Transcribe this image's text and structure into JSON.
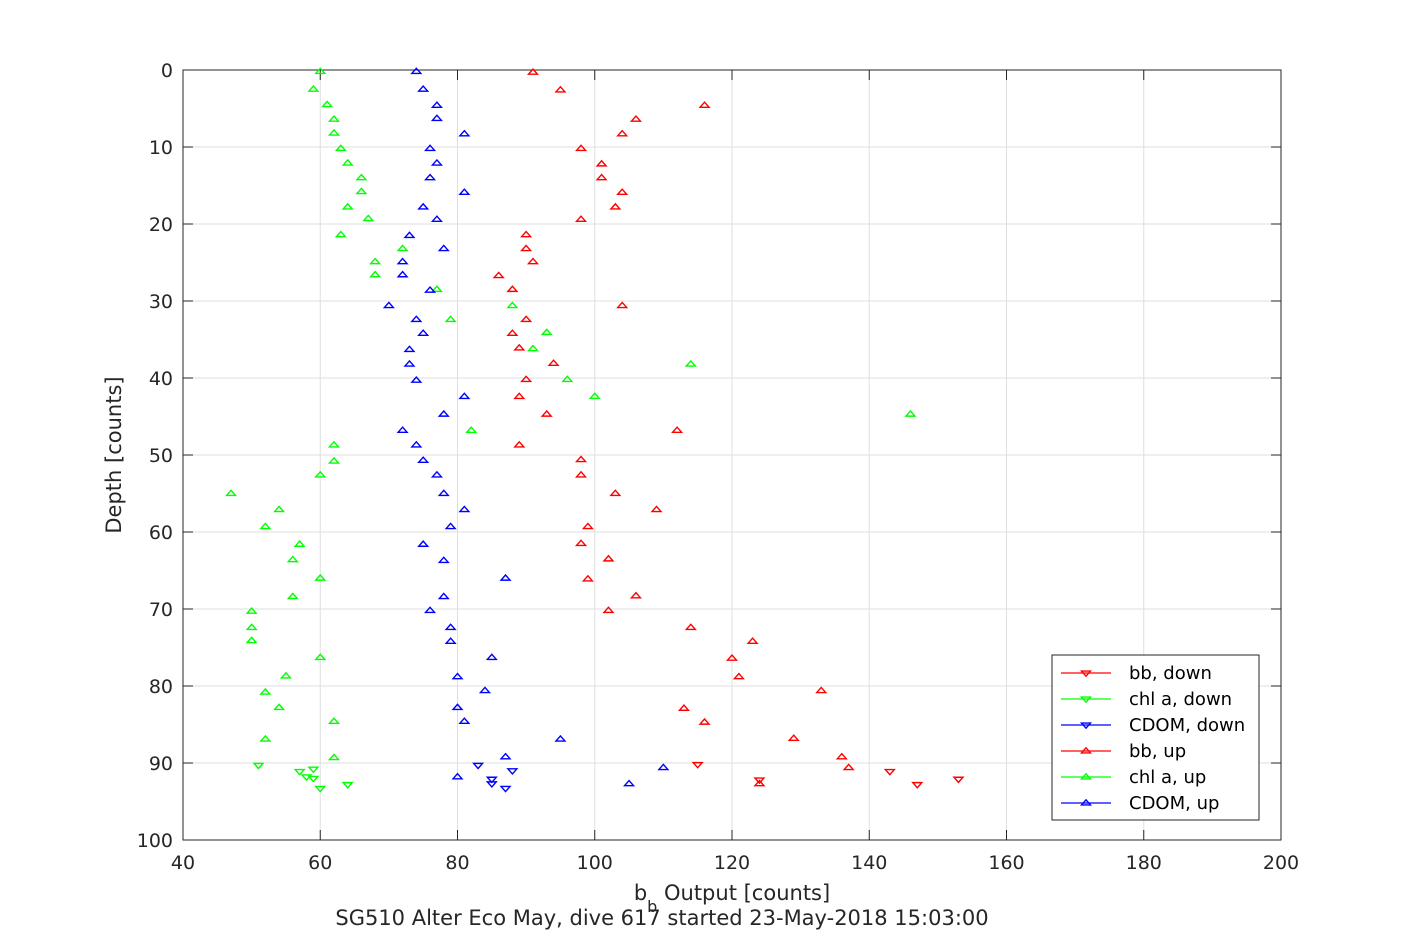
{
  "chart_data": {
    "type": "scatter",
    "xlabel_main": "b",
    "xlabel_sub": "b",
    "xlabel_rest": " Output [counts]",
    "ylabel": "Depth [counts]",
    "caption": "SG510 Alter Eco May, dive 617 started 23-May-2018 15:03:00",
    "xlim": [
      40,
      200
    ],
    "ylim": [
      0,
      100
    ],
    "y_reversed": true,
    "grid": true,
    "x_ticks": [
      "40",
      "60",
      "80",
      "100",
      "120",
      "140",
      "160",
      "180",
      "200"
    ],
    "y_ticks": [
      "0",
      "10",
      "20",
      "30",
      "40",
      "50",
      "60",
      "70",
      "80",
      "90",
      "100"
    ],
    "legend_position": "bottom-right",
    "series": [
      {
        "name": "bb, down",
        "color": "#ff0000",
        "marker": "triangle-down",
        "points": [
          [
            115,
            90.2
          ],
          [
            143,
            91.1
          ],
          [
            153,
            92.1
          ],
          [
            147,
            92.8
          ],
          [
            124,
            92.2
          ]
        ]
      },
      {
        "name": "chl a, down",
        "color": "#00ff00",
        "marker": "triangle-down",
        "points": [
          [
            51,
            90.3
          ],
          [
            57,
            91.1
          ],
          [
            59,
            90.8
          ],
          [
            58,
            91.8
          ],
          [
            59,
            92.0
          ],
          [
            60,
            93.3
          ],
          [
            64,
            92.8
          ]
        ]
      },
      {
        "name": "CDOM, down",
        "color": "#0000ff",
        "marker": "triangle-down",
        "points": [
          [
            83,
            90.3
          ],
          [
            88,
            91.0
          ],
          [
            85,
            92.1
          ],
          [
            85,
            92.7
          ],
          [
            87,
            93.3
          ]
        ]
      },
      {
        "name": "bb, up",
        "color": "#ff0000",
        "marker": "triangle-up",
        "points": [
          [
            91,
            0.3
          ],
          [
            95,
            2.6
          ],
          [
            116,
            4.6
          ],
          [
            106,
            6.4
          ],
          [
            104,
            8.3
          ],
          [
            98,
            10.2
          ],
          [
            101,
            12.2
          ],
          [
            101,
            14.0
          ],
          [
            104,
            15.9
          ],
          [
            103,
            17.8
          ],
          [
            98,
            19.4
          ],
          [
            90,
            21.4
          ],
          [
            90,
            23.2
          ],
          [
            91,
            24.9
          ],
          [
            86,
            26.7
          ],
          [
            88,
            28.5
          ],
          [
            104,
            30.6
          ],
          [
            90,
            32.4
          ],
          [
            88,
            34.2
          ],
          [
            89,
            36.1
          ],
          [
            94,
            38.1
          ],
          [
            90,
            40.2
          ],
          [
            89,
            42.4
          ],
          [
            93,
            44.7
          ],
          [
            112,
            46.8
          ],
          [
            89,
            48.7
          ],
          [
            98,
            50.6
          ],
          [
            98,
            52.6
          ],
          [
            103,
            55.0
          ],
          [
            109,
            57.1
          ],
          [
            99,
            59.3
          ],
          [
            98,
            61.5
          ],
          [
            102,
            63.5
          ],
          [
            99,
            66.1
          ],
          [
            106,
            68.3
          ],
          [
            102,
            70.2
          ],
          [
            114,
            72.4
          ],
          [
            123,
            74.2
          ],
          [
            120,
            76.4
          ],
          [
            121,
            78.8
          ],
          [
            133,
            80.6
          ],
          [
            113,
            82.9
          ],
          [
            116,
            84.7
          ],
          [
            129,
            86.8
          ],
          [
            136,
            89.2
          ],
          [
            137,
            90.6
          ],
          [
            124,
            92.7
          ]
        ]
      },
      {
        "name": "chl a, up",
        "color": "#00ff00",
        "marker": "triangle-up",
        "points": [
          [
            60,
            0.2
          ],
          [
            59,
            2.5
          ],
          [
            61,
            4.5
          ],
          [
            62,
            6.4
          ],
          [
            62,
            8.2
          ],
          [
            63,
            10.2
          ],
          [
            64,
            12.1
          ],
          [
            66,
            14.0
          ],
          [
            66,
            15.8
          ],
          [
            64,
            17.8
          ],
          [
            67,
            19.3
          ],
          [
            63,
            21.4
          ],
          [
            72,
            23.2
          ],
          [
            68,
            24.9
          ],
          [
            68,
            26.6
          ],
          [
            77,
            28.5
          ],
          [
            88,
            30.6
          ],
          [
            79,
            32.4
          ],
          [
            93,
            34.1
          ],
          [
            91,
            36.2
          ],
          [
            114,
            38.2
          ],
          [
            96,
            40.2
          ],
          [
            100,
            42.4
          ],
          [
            146,
            44.7
          ],
          [
            82,
            46.8
          ],
          [
            62,
            48.7
          ],
          [
            62,
            50.8
          ],
          [
            60,
            52.6
          ],
          [
            47,
            55.0
          ],
          [
            54,
            57.1
          ],
          [
            52,
            59.3
          ],
          [
            57,
            61.6
          ],
          [
            56,
            63.6
          ],
          [
            60,
            66.0
          ],
          [
            56,
            68.4
          ],
          [
            50,
            70.3
          ],
          [
            50,
            72.4
          ],
          [
            50,
            74.1
          ],
          [
            60,
            76.3
          ],
          [
            55,
            78.7
          ],
          [
            52,
            80.8
          ],
          [
            54,
            82.8
          ],
          [
            62,
            84.6
          ],
          [
            52,
            86.9
          ],
          [
            62,
            89.3
          ]
        ]
      },
      {
        "name": "CDOM, up",
        "color": "#0000ff",
        "marker": "triangle-up",
        "points": [
          [
            74,
            0.2
          ],
          [
            75,
            2.5
          ],
          [
            77,
            4.6
          ],
          [
            77,
            6.3
          ],
          [
            81,
            8.3
          ],
          [
            76,
            10.2
          ],
          [
            77,
            12.1
          ],
          [
            76,
            14.0
          ],
          [
            81,
            15.9
          ],
          [
            75,
            17.8
          ],
          [
            77,
            19.4
          ],
          [
            73,
            21.5
          ],
          [
            78,
            23.2
          ],
          [
            72,
            24.9
          ],
          [
            72,
            26.6
          ],
          [
            76,
            28.6
          ],
          [
            70,
            30.6
          ],
          [
            74,
            32.4
          ],
          [
            75,
            34.2
          ],
          [
            73,
            36.3
          ],
          [
            73,
            38.2
          ],
          [
            74,
            40.3
          ],
          [
            81,
            42.4
          ],
          [
            78,
            44.7
          ],
          [
            72,
            46.8
          ],
          [
            74,
            48.7
          ],
          [
            75,
            50.7
          ],
          [
            77,
            52.6
          ],
          [
            78,
            55.0
          ],
          [
            81,
            57.1
          ],
          [
            79,
            59.3
          ],
          [
            75,
            61.6
          ],
          [
            78,
            63.7
          ],
          [
            87,
            66.0
          ],
          [
            78,
            68.4
          ],
          [
            76,
            70.2
          ],
          [
            79,
            72.4
          ],
          [
            79,
            74.2
          ],
          [
            85,
            76.3
          ],
          [
            80,
            78.8
          ],
          [
            84,
            80.6
          ],
          [
            80,
            82.8
          ],
          [
            81,
            84.6
          ],
          [
            95,
            86.9
          ],
          [
            87,
            89.2
          ],
          [
            110,
            90.6
          ],
          [
            80,
            91.8
          ],
          [
            105,
            92.7
          ]
        ]
      }
    ]
  }
}
